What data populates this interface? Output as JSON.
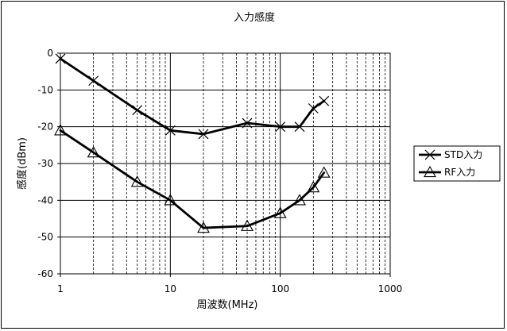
{
  "chart_data": {
    "type": "line",
    "title": "入力感度",
    "xlabel": "周波数(MHz)",
    "ylabel": "感度(dBm)",
    "x_scale": "log",
    "xlim": [
      1,
      1000
    ],
    "ylim": [
      -60,
      0
    ],
    "x_ticks": [
      "1",
      "10",
      "100",
      "1000"
    ],
    "y_ticks": [
      "0",
      "-10",
      "-20",
      "-30",
      "-40",
      "-50",
      "-60"
    ],
    "grid": true,
    "legend_position": "right",
    "series": [
      {
        "name": "STD入力",
        "marker": "x",
        "x": [
          1,
          2,
          5,
          10,
          20,
          50,
          100,
          150,
          200,
          250
        ],
        "y": [
          -1.5,
          -7.5,
          -15.5,
          -21,
          -22,
          -19,
          -20,
          -20,
          -15,
          -13
        ]
      },
      {
        "name": "RF入力",
        "marker": "triangle",
        "x": [
          1,
          2,
          5,
          10,
          20,
          50,
          100,
          150,
          200,
          250
        ],
        "y": [
          -21,
          -27,
          -35,
          -40,
          -47.5,
          -47,
          -43.5,
          -40,
          -36.5,
          -32.5
        ]
      }
    ]
  }
}
